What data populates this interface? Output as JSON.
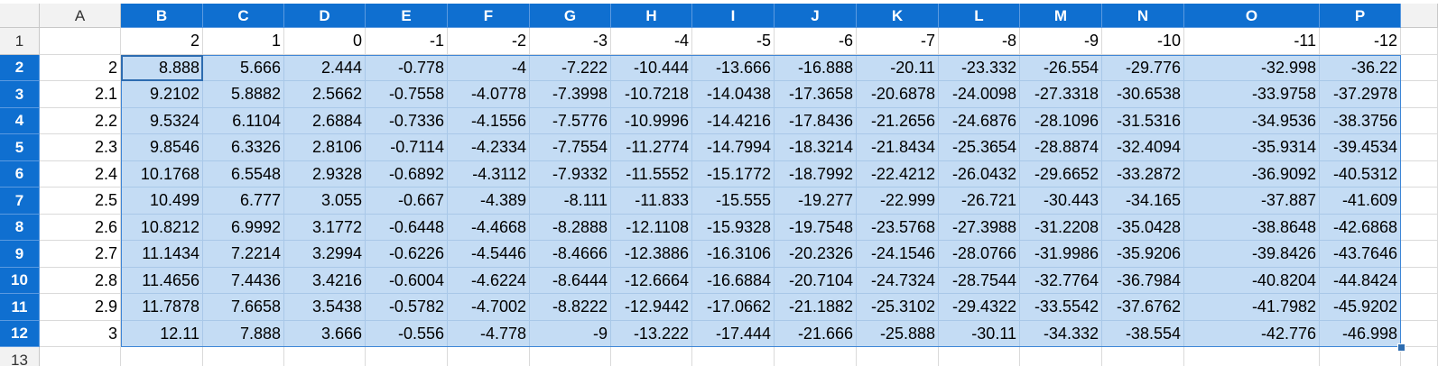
{
  "columns": [
    "A",
    "B",
    "C",
    "D",
    "E",
    "F",
    "G",
    "H",
    "I",
    "J",
    "K",
    "L",
    "M",
    "N",
    "O",
    "P"
  ],
  "rows": [
    {
      "header": "1",
      "cells": [
        null,
        "2",
        "1",
        "0",
        "-1",
        "-2",
        "-3",
        "-4",
        "-5",
        "-6",
        "-7",
        "-8",
        "-9",
        "-10",
        "-11",
        "-12"
      ]
    },
    {
      "header": "2",
      "cells": [
        "2",
        "8.888",
        "5.666",
        "2.444",
        "-0.778",
        "-4",
        "-7.222",
        "-10.444",
        "-13.666",
        "-16.888",
        "-20.11",
        "-23.332",
        "-26.554",
        "-29.776",
        "-32.998",
        "-36.22"
      ]
    },
    {
      "header": "3",
      "cells": [
        "2.1",
        "9.2102",
        "5.8882",
        "2.5662",
        "-0.7558",
        "-4.0778",
        "-7.3998",
        "-10.7218",
        "-14.0438",
        "-17.3658",
        "-20.6878",
        "-24.0098",
        "-27.3318",
        "-30.6538",
        "-33.9758",
        "-37.2978"
      ]
    },
    {
      "header": "4",
      "cells": [
        "2.2",
        "9.5324",
        "6.1104",
        "2.6884",
        "-0.7336",
        "-4.1556",
        "-7.5776",
        "-10.9996",
        "-14.4216",
        "-17.8436",
        "-21.2656",
        "-24.6876",
        "-28.1096",
        "-31.5316",
        "-34.9536",
        "-38.3756"
      ]
    },
    {
      "header": "5",
      "cells": [
        "2.3",
        "9.8546",
        "6.3326",
        "2.8106",
        "-0.7114",
        "-4.2334",
        "-7.7554",
        "-11.2774",
        "-14.7994",
        "-18.3214",
        "-21.8434",
        "-25.3654",
        "-28.8874",
        "-32.4094",
        "-35.9314",
        "-39.4534"
      ]
    },
    {
      "header": "6",
      "cells": [
        "2.4",
        "10.1768",
        "6.5548",
        "2.9328",
        "-0.6892",
        "-4.3112",
        "-7.9332",
        "-11.5552",
        "-15.1772",
        "-18.7992",
        "-22.4212",
        "-26.0432",
        "-29.6652",
        "-33.2872",
        "-36.9092",
        "-40.5312"
      ]
    },
    {
      "header": "7",
      "cells": [
        "2.5",
        "10.499",
        "6.777",
        "3.055",
        "-0.667",
        "-4.389",
        "-8.111",
        "-11.833",
        "-15.555",
        "-19.277",
        "-22.999",
        "-26.721",
        "-30.443",
        "-34.165",
        "-37.887",
        "-41.609"
      ]
    },
    {
      "header": "8",
      "cells": [
        "2.6",
        "10.8212",
        "6.9992",
        "3.1772",
        "-0.6448",
        "-4.4668",
        "-8.2888",
        "-12.1108",
        "-15.9328",
        "-19.7548",
        "-23.5768",
        "-27.3988",
        "-31.2208",
        "-35.0428",
        "-38.8648",
        "-42.6868"
      ]
    },
    {
      "header": "9",
      "cells": [
        "2.7",
        "11.1434",
        "7.2214",
        "3.2994",
        "-0.6226",
        "-4.5446",
        "-8.4666",
        "-12.3886",
        "-16.3106",
        "-20.2326",
        "-24.1546",
        "-28.0766",
        "-31.9986",
        "-35.9206",
        "-39.8426",
        "-43.7646"
      ]
    },
    {
      "header": "10",
      "cells": [
        "2.8",
        "11.4656",
        "7.4436",
        "3.4216",
        "-0.6004",
        "-4.6224",
        "-8.6444",
        "-12.6664",
        "-16.6884",
        "-20.7104",
        "-24.7324",
        "-28.7544",
        "-32.7764",
        "-36.7984",
        "-40.8204",
        "-44.8424"
      ]
    },
    {
      "header": "11",
      "cells": [
        "2.9",
        "11.7878",
        "7.6658",
        "3.5438",
        "-0.5782",
        "-4.7002",
        "-8.8222",
        "-12.9442",
        "-17.0662",
        "-21.1882",
        "-25.3102",
        "-29.4322",
        "-33.5542",
        "-37.6762",
        "-41.7982",
        "-45.9202"
      ]
    },
    {
      "header": "12",
      "cells": [
        "3",
        "12.11",
        "7.888",
        "3.666",
        "-0.556",
        "-4.778",
        "-9",
        "-13.222",
        "-17.444",
        "-21.666",
        "-25.888",
        "-30.11",
        "-34.332",
        "-38.554",
        "-42.776",
        "-46.998"
      ]
    },
    {
      "header": "13"
    }
  ]
}
